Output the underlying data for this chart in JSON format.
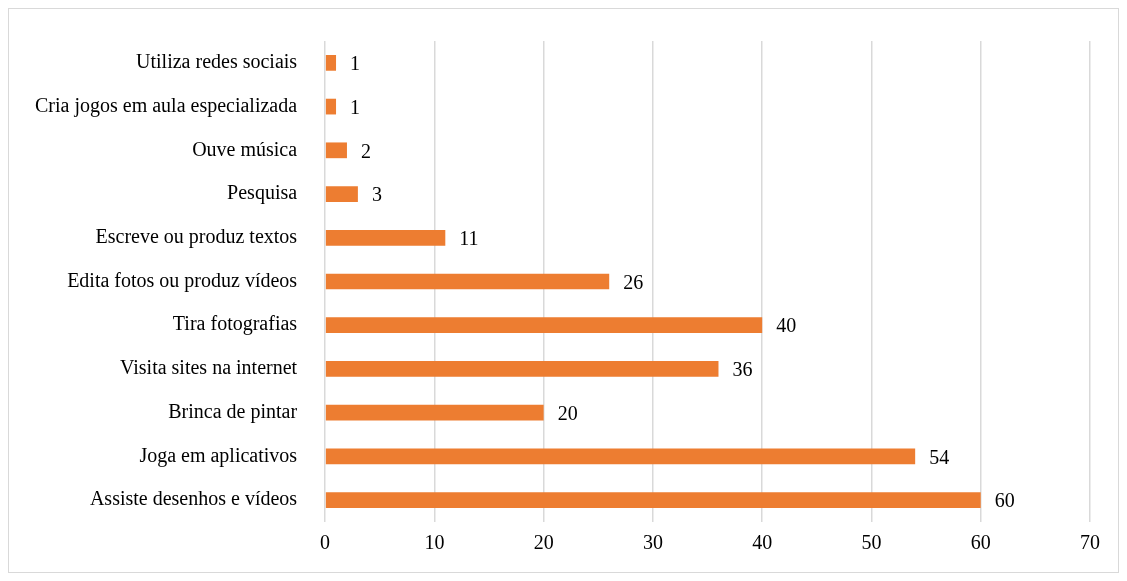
{
  "chart_data": {
    "type": "bar",
    "orientation": "horizontal",
    "categories": [
      "Utiliza redes sociais",
      "Cria jogos em aula especializada",
      "Ouve música",
      "Pesquisa",
      "Escreve ou produz textos",
      "Edita fotos ou produz vídeos",
      "Tira fotografias",
      "Visita sites na internet",
      "Brinca de pintar",
      "Joga em aplicativos",
      "Assiste desenhos e vídeos"
    ],
    "values": [
      1,
      1,
      2,
      3,
      11,
      26,
      40,
      36,
      20,
      54,
      60
    ],
    "color": "#ed7d31",
    "xlim": [
      0,
      70
    ],
    "xticks": [
      0,
      10,
      20,
      30,
      40,
      50,
      60,
      70
    ],
    "grid": "x",
    "legend": false,
    "data_labels": true
  }
}
